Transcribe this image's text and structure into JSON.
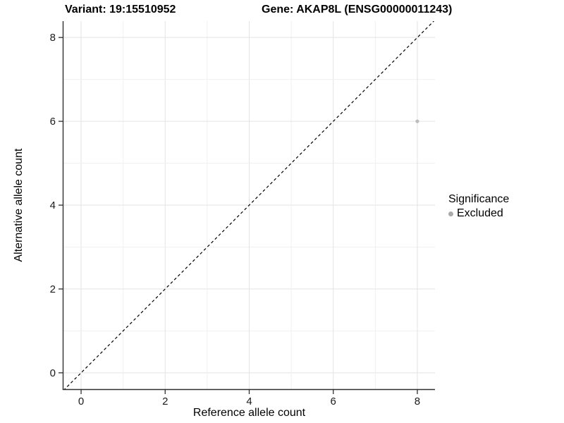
{
  "figure": {
    "title_variant": "Variant: 19:15510952",
    "title_gene": "Gene: AKAP8L (ENSG00000011243)"
  },
  "chart_data": {
    "type": "scatter",
    "title": "Variant: 19:15510952   Gene: AKAP8L (ENSG00000011243)",
    "xlabel": "Reference allele count",
    "ylabel": "Alternative allele count",
    "x_ticks": [
      0,
      2,
      4,
      6,
      8
    ],
    "y_ticks": [
      0,
      2,
      4,
      6,
      8
    ],
    "xlim": [
      -0.42,
      8.42
    ],
    "ylim": [
      -0.39,
      8.39
    ],
    "grid": "on",
    "gridline_interval": 1,
    "points": [
      {
        "x": 8,
        "y": 6,
        "significance": "Excluded"
      }
    ],
    "reference_line": {
      "kind": "identity y = x",
      "style": "dashed",
      "color": "#000000"
    },
    "legend": {
      "title": "Significance",
      "position": "right",
      "entries": [
        {
          "label": "Excluded",
          "color": "#aaaaaa"
        }
      ]
    },
    "colors": {
      "point": "#bdbdbd",
      "grid_major": "#e3e3e3",
      "grid_minor": "#f0f0f0",
      "axis": "#2f2f2f",
      "tick_text": "#1a1a1a"
    }
  }
}
